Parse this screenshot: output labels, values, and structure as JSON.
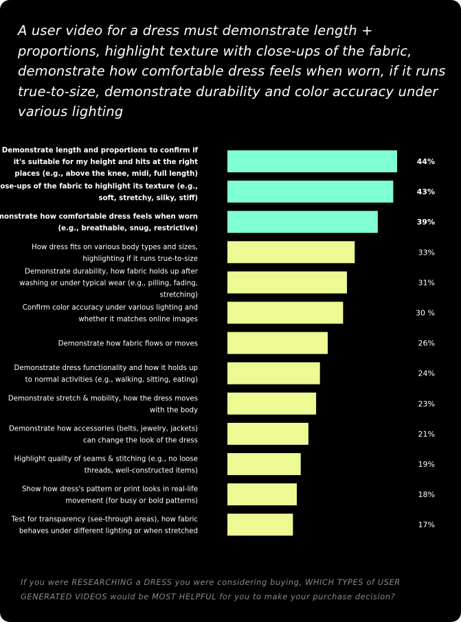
{
  "headline": "A user video for a dress must demonstrate length + proportions, highlight texture with close-ups of the fabric, demonstrate how comfortable dress feels when worn, if it runs true-to-size, demonstrate durability and color accuracy under various lighting",
  "footer": "If you were RESEARCHING a DRESS you were considering buying, WHICH TYPES of USER GENERATED VIDEOS would be MOST HELPFUL for you to make your purchase decision?",
  "colors": {
    "background": "#000000",
    "highlight_bar": "#80FFD4",
    "standard_bar": "#EDFA94",
    "text": "#FFFFFF",
    "muted_text": "#8A8A8A"
  },
  "chart_data": {
    "type": "bar",
    "orientation": "horizontal",
    "unit": "%",
    "xlim": [
      0,
      50
    ],
    "highlight_top_n": 3,
    "categories": [
      {
        "label_lines": [
          "Demonstrate length and proportions to confirm if",
          "it's suitable for my height and hits at the right",
          "places (e.g., above the knee, midi, full length)"
        ],
        "value": 44,
        "value_label": "44%"
      },
      {
        "label_lines": [
          "Close-ups of the fabric to highlight its texture (e.g.,",
          "soft, stretchy, silky, stiff)"
        ],
        "value": 43,
        "value_label": "43%"
      },
      {
        "label_lines": [
          "Demonstrate how comfortable dress feels when worn",
          "(e.g., breathable, snug, restrictive)"
        ],
        "value": 39,
        "value_label": "39%"
      },
      {
        "label_lines": [
          "How dress fits on various body types and sizes,",
          "highlighting if it runs true-to-size"
        ],
        "value": 33,
        "value_label": "33%"
      },
      {
        "label_lines": [
          "Demonstrate durability, how fabric holds up after",
          "washing or under typical wear (e.g., pilling, fading,",
          "stretching)"
        ],
        "value": 31,
        "value_label": "31%"
      },
      {
        "label_lines": [
          "Confirm color accuracy under various lighting and",
          "whether it matches online images"
        ],
        "value": 30,
        "value_label": "30 %"
      },
      {
        "label_lines": [
          "Demonstrate how fabric flows or moves"
        ],
        "value": 26,
        "value_label": "26%"
      },
      {
        "label_lines": [
          "Demonstrate dress functionality and how it holds up",
          "to normal activities (e.g., walking, sitting, eating)"
        ],
        "value": 24,
        "value_label": "24%"
      },
      {
        "label_lines": [
          "Demonstrate stretch & mobility, how the dress moves",
          "with the body"
        ],
        "value": 23,
        "value_label": "23%"
      },
      {
        "label_lines": [
          "Demonstrate how accessories (belts, jewelry, jackets)",
          "can change the look of the dress"
        ],
        "value": 21,
        "value_label": "21%"
      },
      {
        "label_lines": [
          "Highlight quality of seams & stitching (e.g., no loose",
          "threads, well-constructed items)"
        ],
        "value": 19,
        "value_label": "19%"
      },
      {
        "label_lines": [
          "Show how dress's pattern or print looks in real-life",
          "movement (for busy or bold patterns)"
        ],
        "value": 18,
        "value_label": "18%"
      },
      {
        "label_lines": [
          "Test for transparency (see-through areas), how fabric",
          "behaves under different lighting or when stretched"
        ],
        "value": 17,
        "value_label": "17%"
      }
    ]
  }
}
